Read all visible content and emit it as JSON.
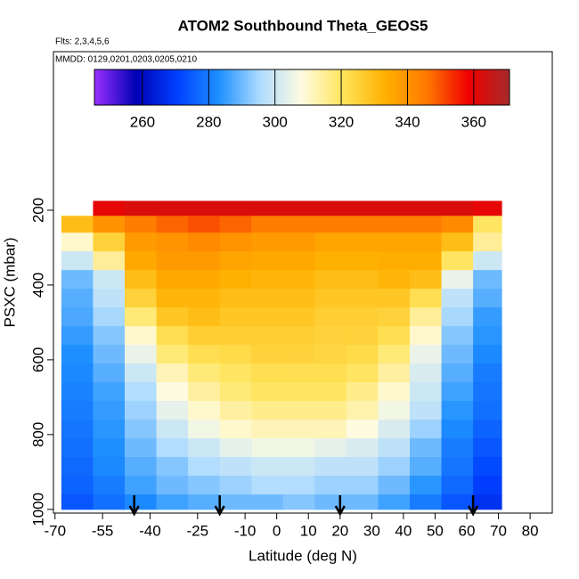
{
  "chart_data": {
    "type": "heatmap",
    "title": "ATOM2 Southbound Theta_GEOS5",
    "subtitle": "Flts: 2,3,4,5,6",
    "annotation": "MMDD: 0129,0201,0203,0205,0210",
    "x_label": "Latitude (deg N)",
    "y_label": "PSXC (mbar)",
    "xlim": [
      -70.5,
      87
    ],
    "xticks": [
      -70,
      -55,
      -40,
      -25,
      -10,
      0,
      10,
      20,
      30,
      40,
      50,
      60,
      70,
      80
    ],
    "ylim": [
      1010,
      -224
    ],
    "yticks": [
      200,
      400,
      600,
      800,
      1000
    ],
    "x_edges": [
      -68,
      -58,
      -48,
      -38,
      -28,
      -18,
      -8,
      2,
      12,
      22,
      32,
      42,
      52,
      62,
      71
    ],
    "y_edges": [
      175,
      215,
      260,
      310,
      360,
      410,
      460,
      510,
      560,
      610,
      660,
      710,
      760,
      810,
      860,
      910,
      960,
      1000
    ],
    "values": [
      [
        null,
        360,
        362,
        362,
        362,
        362,
        362,
        362,
        362,
        362,
        362,
        362,
        362,
        360
      ],
      [
        330,
        340,
        345,
        348,
        350,
        348,
        345,
        345,
        345,
        345,
        345,
        345,
        342,
        320
      ],
      [
        310,
        325,
        338,
        340,
        342,
        340,
        338,
        338,
        336,
        336,
        336,
        336,
        330,
        315
      ],
      [
        300,
        315,
        335,
        338,
        338,
        336,
        335,
        335,
        333,
        333,
        334,
        334,
        320,
        300
      ],
      [
        290,
        300,
        330,
        335,
        335,
        333,
        332,
        332,
        330,
        330,
        332,
        330,
        305,
        290
      ],
      [
        288,
        298,
        325,
        332,
        332,
        330,
        330,
        330,
        328,
        328,
        328,
        322,
        298,
        288
      ],
      [
        287,
        295,
        318,
        328,
        330,
        328,
        328,
        328,
        326,
        326,
        325,
        315,
        295,
        285
      ],
      [
        285,
        292,
        310,
        322,
        326,
        326,
        326,
        326,
        325,
        325,
        322,
        310,
        292,
        284
      ],
      [
        283,
        290,
        305,
        318,
        322,
        323,
        325,
        325,
        324,
        323,
        318,
        305,
        290,
        282
      ],
      [
        282,
        288,
        300,
        312,
        318,
        320,
        322,
        322,
        322,
        320,
        314,
        302,
        288,
        280
      ],
      [
        281,
        286,
        296,
        308,
        314,
        318,
        320,
        320,
        320,
        316,
        310,
        300,
        286,
        279
      ],
      [
        280,
        285,
        294,
        304,
        310,
        314,
        316,
        316,
        316,
        313,
        306,
        298,
        284,
        278
      ],
      [
        279,
        284,
        292,
        300,
        306,
        310,
        312,
        312,
        312,
        308,
        302,
        294,
        282,
        276
      ],
      [
        278,
        283,
        290,
        296,
        300,
        304,
        306,
        306,
        304,
        302,
        298,
        290,
        280,
        274
      ],
      [
        277,
        282,
        288,
        292,
        296,
        298,
        300,
        300,
        298,
        298,
        294,
        288,
        279,
        272
      ],
      [
        276,
        280,
        286,
        290,
        292,
        294,
        296,
        296,
        294,
        294,
        290,
        284,
        277,
        270
      ],
      [
        274,
        278,
        282,
        286,
        288,
        290,
        290,
        292,
        290,
        290,
        286,
        280,
        274,
        268
      ]
    ],
    "arrows": [
      -45,
      -18,
      20,
      62
    ],
    "colorbar": {
      "lim": [
        245.5,
        370.8
      ],
      "ticks": [
        260,
        280,
        300,
        320,
        340,
        360
      ],
      "colors": [
        "#9b30ff",
        "#0000b4",
        "#0040ff",
        "#1e90ff",
        "#b0dcff",
        "#fffbe0",
        "#ffe45a",
        "#ffb000",
        "#ff7a00",
        "#f00000",
        "#a52a2a"
      ]
    }
  }
}
